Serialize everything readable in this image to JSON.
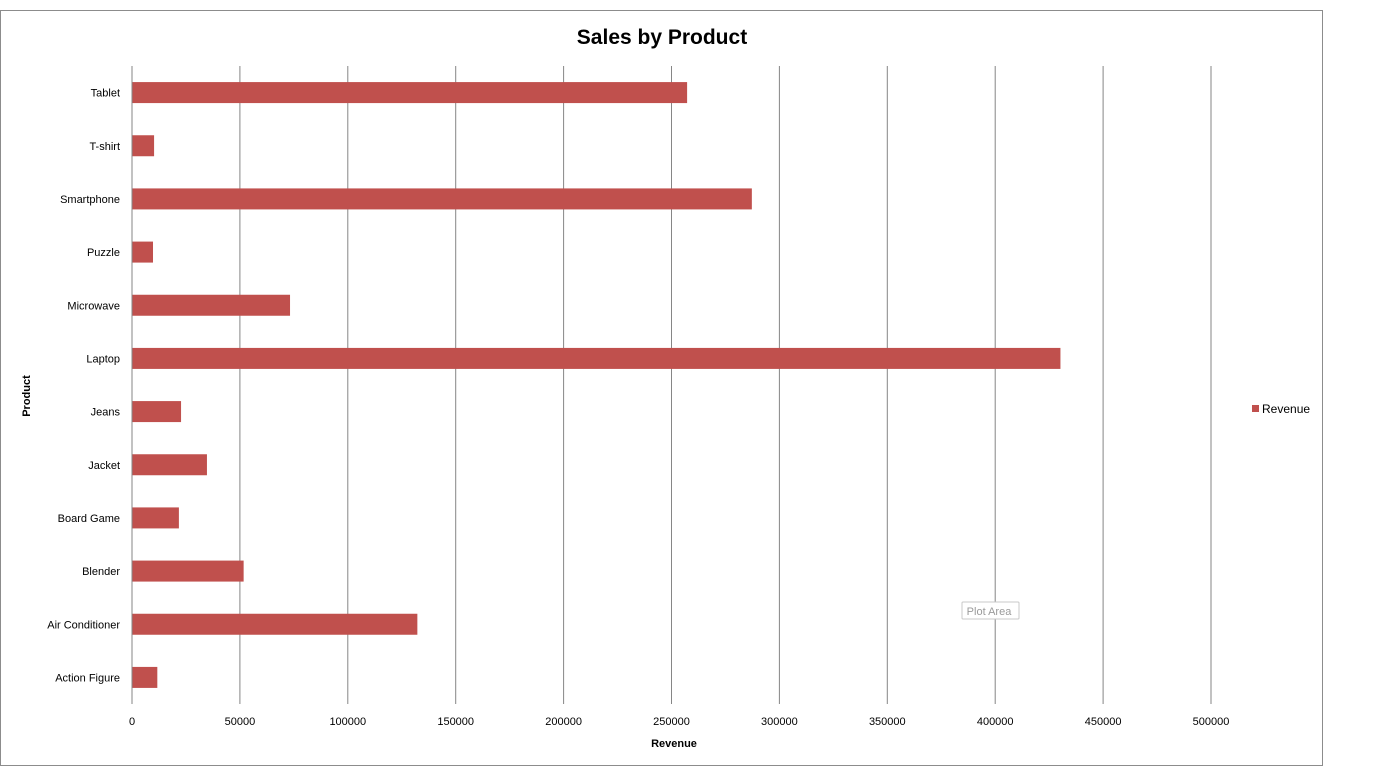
{
  "chart_data": {
    "type": "bar",
    "orientation": "horizontal",
    "title": "Sales by Product",
    "xlabel": "Revenue",
    "ylabel": "Product",
    "categories": [
      "Tablet",
      "T-shirt",
      "Smartphone",
      "Puzzle",
      "Microwave",
      "Laptop",
      "Jeans",
      "Jacket",
      "Board Game",
      "Blender",
      "Air Conditioner",
      "Action Figure"
    ],
    "series": [
      {
        "name": "Revenue",
        "color": "#c0504d",
        "values": [
          257000,
          10000,
          287000,
          9500,
          73000,
          430000,
          22500,
          34500,
          21500,
          51500,
          132000,
          11500
        ]
      }
    ],
    "xlim": [
      0,
      500000
    ],
    "x_ticks": [
      "0",
      "50000",
      "100000",
      "150000",
      "200000",
      "250000",
      "300000",
      "350000",
      "400000",
      "450000",
      "500000"
    ],
    "grid": "vertical major gridlines",
    "legend": "right"
  },
  "tooltip": {
    "text": "Plot Area"
  }
}
